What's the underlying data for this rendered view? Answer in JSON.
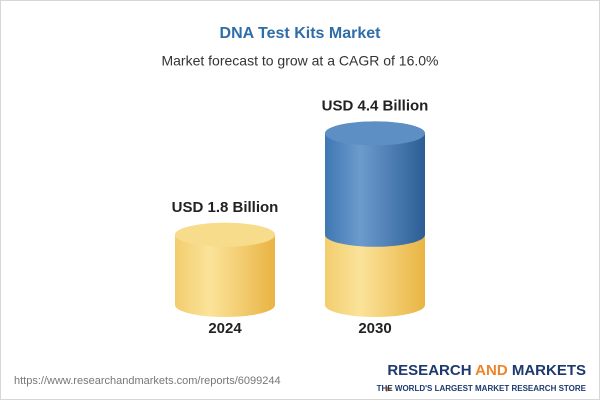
{
  "chart_data": {
    "type": "cylinder",
    "title": "DNA Test Kits Market",
    "subtitle": "Market forecast to grow at a CAGR of 16.0%",
    "categories": [
      "2024",
      "2030"
    ],
    "values": [
      1.8,
      4.4
    ],
    "value_labels": [
      "USD 1.8 Billion",
      "USD 4.4 Billion"
    ],
    "colors": [
      "#efc25a",
      "#3f77b2"
    ]
  },
  "footer": {
    "url": "https://www.researchandmarkets.com/reports/6099244",
    "logo": [
      "RESEARCH",
      "AND",
      "MARKETS"
    ],
    "tagline": "THE WORLD'S LARGEST MARKET RESEARCH STORE"
  }
}
